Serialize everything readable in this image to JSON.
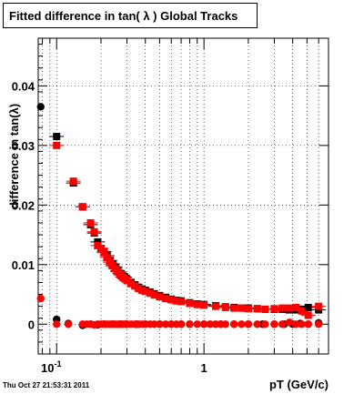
{
  "chart_data": {
    "type": "scatter",
    "title": "Fitted difference in tan( λ )  Global Tracks",
    "xlabel": "pT (GeV/c)",
    "ylabel": "difference in tan(λ)",
    "x_scale": "log",
    "xlim": [
      0.075,
      7.0
    ],
    "ylim": [
      -0.005,
      0.048
    ],
    "grid": true,
    "x_tick_labels": [
      {
        "value": 0.1,
        "label": "10",
        "sup": "-1"
      },
      {
        "value": 1,
        "label": "1"
      }
    ],
    "y_ticks": [
      0,
      0.01,
      0.02,
      0.03,
      0.04
    ],
    "y_tick_labels": [
      "0",
      "0.01",
      "0.02",
      "0.03",
      "0.04"
    ],
    "series": [
      {
        "color": "#000000",
        "marker": "square",
        "x": [
          0.1,
          0.13,
          0.15,
          0.17,
          0.18,
          0.19,
          0.2,
          0.21,
          0.22,
          0.23,
          0.24,
          0.25,
          0.26,
          0.27,
          0.28,
          0.29,
          0.3,
          0.32,
          0.34,
          0.36,
          0.38,
          0.4,
          0.43,
          0.46,
          0.5,
          0.55,
          0.6,
          0.65,
          0.7,
          0.8,
          0.9,
          1.0,
          1.2,
          1.4,
          1.6,
          1.8,
          2.0,
          2.3,
          2.6,
          3.0,
          3.4,
          3.8,
          4.2,
          4.6,
          5.1,
          6.0
        ],
        "y": [
          0.0315,
          0.0237,
          0.0197,
          0.0167,
          0.0153,
          0.0138,
          0.0127,
          0.0122,
          0.0115,
          0.0107,
          0.0101,
          0.0096,
          0.009,
          0.0085,
          0.0082,
          0.0079,
          0.0075,
          0.007,
          0.0066,
          0.0062,
          0.0059,
          0.0057,
          0.0054,
          0.0051,
          0.0048,
          0.0045,
          0.0042,
          0.004,
          0.0039,
          0.0036,
          0.0034,
          0.0033,
          0.0031,
          0.0029,
          0.0028,
          0.0027,
          0.0027,
          0.0026,
          0.0025,
          0.0025,
          0.0025,
          0.0024,
          0.0024,
          0.0025,
          0.0028,
          0.0024
        ]
      },
      {
        "color": "#ff0000",
        "marker": "square",
        "x": [
          0.1,
          0.13,
          0.15,
          0.17,
          0.18,
          0.19,
          0.2,
          0.21,
          0.22,
          0.23,
          0.24,
          0.25,
          0.26,
          0.27,
          0.28,
          0.29,
          0.3,
          0.32,
          0.34,
          0.36,
          0.38,
          0.4,
          0.43,
          0.46,
          0.5,
          0.55,
          0.6,
          0.65,
          0.7,
          0.8,
          0.9,
          1.0,
          1.2,
          1.4,
          1.6,
          1.8,
          2.0,
          2.3,
          2.6,
          3.0,
          3.4,
          3.8,
          4.2,
          4.6,
          5.1,
          6.0
        ],
        "y": [
          0.03,
          0.024,
          0.0197,
          0.017,
          0.0155,
          0.0132,
          0.0127,
          0.012,
          0.0112,
          0.0104,
          0.0098,
          0.0093,
          0.0088,
          0.0083,
          0.0079,
          0.0076,
          0.0073,
          0.0068,
          0.0064,
          0.006,
          0.0057,
          0.0055,
          0.0052,
          0.0049,
          0.0046,
          0.0043,
          0.0041,
          0.0039,
          0.0038,
          0.0035,
          0.0033,
          0.0032,
          0.003,
          0.0028,
          0.0027,
          0.0027,
          0.0026,
          0.0026,
          0.0025,
          0.0026,
          0.0027,
          0.0027,
          0.0028,
          0.0022,
          0.0015,
          0.003
        ]
      },
      {
        "color": "#000000",
        "marker": "circle",
        "x": [
          0.078,
          0.1,
          0.12,
          0.15,
          0.17,
          0.19,
          0.21,
          0.24,
          0.27,
          0.3,
          0.35,
          0.4,
          0.5,
          0.6,
          0.7,
          0.8,
          1.0,
          1.3,
          1.6,
          2.0,
          2.5,
          3.0,
          3.5,
          4.0,
          4.5,
          5.1,
          6.0
        ],
        "y": [
          0.0365,
          0.0008,
          0.0001,
          -0.0002,
          0.0,
          -0.0001,
          0.0,
          0.0,
          0.0,
          0.0,
          0.0,
          0.0,
          0.0,
          0.0,
          0.0,
          0.0,
          0.0,
          0.0,
          0.0,
          0.0,
          0.0,
          0.0,
          0.0,
          0.0,
          0.0001,
          0.0,
          0.0002
        ]
      },
      {
        "color": "#ff0000",
        "marker": "circle",
        "x": [
          0.078,
          0.1,
          0.12,
          0.15,
          0.16,
          0.17,
          0.18,
          0.19,
          0.2,
          0.21,
          0.22,
          0.23,
          0.24,
          0.25,
          0.26,
          0.27,
          0.28,
          0.29,
          0.3,
          0.32,
          0.34,
          0.36,
          0.38,
          0.4,
          0.43,
          0.46,
          0.5,
          0.55,
          0.6,
          0.65,
          0.7,
          0.8,
          0.9,
          1.0,
          1.1,
          1.2,
          1.3,
          1.4,
          1.6,
          1.8,
          2.0,
          2.3,
          2.6,
          3.0,
          3.4,
          3.8,
          4.2,
          4.6,
          5.1,
          6.0
        ],
        "y": [
          0.0043,
          0.0,
          0.0,
          0.0,
          0.0,
          0.0,
          -0.0001,
          0.0,
          0.0,
          0.0,
          0.0,
          0.0,
          0.0,
          0.0,
          0.0,
          0.0,
          0.0,
          0.0,
          0.0,
          0.0,
          0.0,
          0.0,
          0.0,
          0.0,
          0.0,
          0.0,
          0.0,
          0.0,
          0.0,
          0.0,
          0.0,
          0.0,
          0.0,
          0.0,
          0.0,
          0.0,
          0.0,
          0.0,
          0.0,
          0.0,
          0.0,
          0.0,
          0.0,
          0.0,
          0.0,
          0.0003,
          0.0,
          0.0,
          0.0,
          0.0
        ]
      }
    ]
  },
  "footer": {
    "timestamp": "Thu Oct 27 21:53:31 2011"
  }
}
